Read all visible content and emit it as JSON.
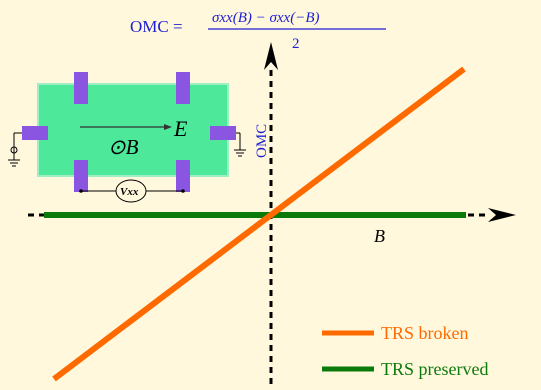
{
  "formula": {
    "lhs": "OMC =",
    "numerator": "σxx(B) − σxx(−B)",
    "denominator": "2",
    "color": "#1e1ed2"
  },
  "axes": {
    "vertical_label": "OMC",
    "horizontal_label": "B",
    "line_color": "#000000"
  },
  "device": {
    "field_label": "E",
    "magnetic_label": "⊙B",
    "voltmeter_label": "Vxx",
    "body_color": "#4de89a",
    "contact_color": "#8a55e0"
  },
  "legend": {
    "items": [
      {
        "label": "TRS broken",
        "color": "#ff6a00"
      },
      {
        "label": "TRS preserved",
        "color": "#0a7a0a"
      }
    ]
  },
  "lines": {
    "broken_color": "#ff6a00",
    "preserved_color": "#0a7a0a"
  }
}
